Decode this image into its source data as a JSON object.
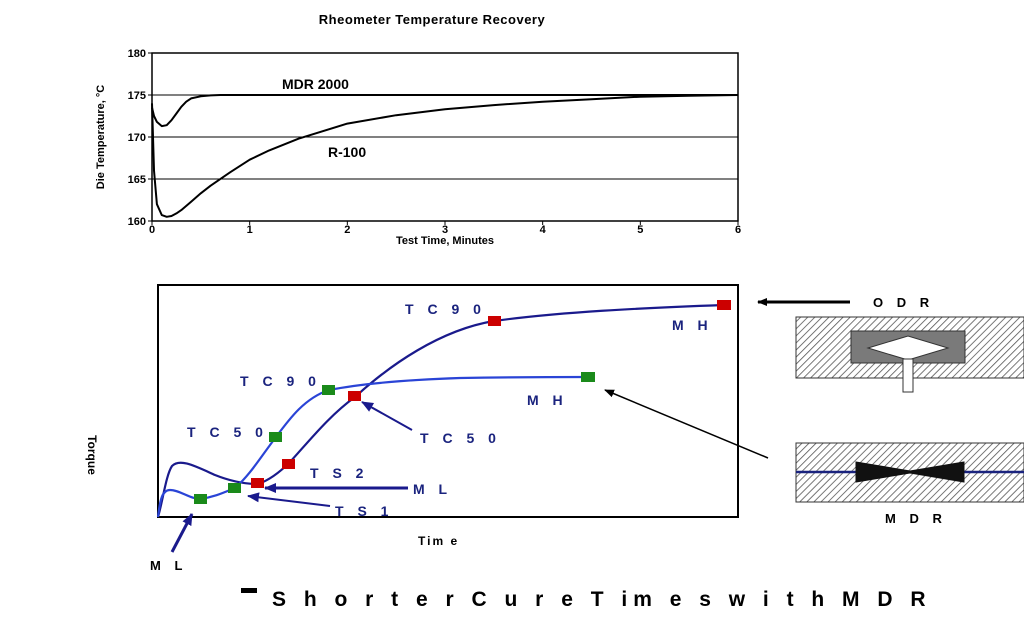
{
  "chart_data": [
    {
      "type": "line",
      "title": "Rheometer Temperature Recovery",
      "xlabel": "Test Time, Minutes",
      "ylabel": "Die Temperature, °C",
      "xlim": [
        0,
        6
      ],
      "ylim": [
        160,
        180
      ],
      "x_ticks": [
        "0",
        "1",
        "2",
        "3",
        "4",
        "5",
        "6"
      ],
      "y_ticks": [
        "160",
        "165",
        "170",
        "175",
        "180"
      ],
      "horizontal_gridlines": [
        165,
        170,
        175
      ],
      "series": [
        {
          "name": "MDR 2000",
          "x": [
            0,
            0.02,
            0.05,
            0.1,
            0.15,
            0.2,
            0.25,
            0.3,
            0.35,
            0.4,
            0.5,
            0.6,
            0.7,
            0.8,
            1.0,
            2.0,
            3.0,
            4.0,
            5.0,
            6.0
          ],
          "y": [
            173.5,
            172.5,
            171.8,
            171.3,
            171.4,
            172.0,
            172.8,
            173.6,
            174.2,
            174.6,
            174.85,
            174.95,
            175,
            175,
            175,
            175,
            175,
            175,
            175,
            175
          ]
        },
        {
          "name": "R-100",
          "x": [
            0,
            0.02,
            0.05,
            0.1,
            0.15,
            0.2,
            0.25,
            0.3,
            0.4,
            0.5,
            0.6,
            0.8,
            1.0,
            1.2,
            1.5,
            2.0,
            2.5,
            3.0,
            3.5,
            4.0,
            4.5,
            5.0,
            5.5,
            6.0
          ],
          "y": [
            174,
            166,
            162,
            160.7,
            160.5,
            160.6,
            160.9,
            161.3,
            162.3,
            163.3,
            164.2,
            165.8,
            167.3,
            168.4,
            169.8,
            171.6,
            172.6,
            173.3,
            173.8,
            174.2,
            174.5,
            174.8,
            174.9,
            175
          ]
        }
      ]
    },
    {
      "type": "line",
      "xlabel": "Tim e",
      "ylabel": "Torque",
      "series": [
        {
          "name": "ODR",
          "marker_labels": [
            "TS 1",
            "TS 2",
            "TC 50",
            "TC 90",
            "M H"
          ]
        },
        {
          "name": "MDR",
          "marker_labels": [
            "M L",
            "TC 50",
            "TC 90",
            "M H"
          ]
        }
      ],
      "annotations": [
        "M L",
        "M L",
        "TS 1",
        "TS 2",
        "TC 50",
        "TC 50",
        "TC 90",
        "TC 90",
        "M H",
        "M H"
      ]
    }
  ],
  "colors": {
    "odr_curve": "#1a1a8c",
    "mdr_curve": "#2a44d6",
    "odr_marker": "#cc0000",
    "mdr_marker": "#1a8a1a",
    "label_text": "#1a237e"
  },
  "labels": {
    "odr": "O D R",
    "mdr": "M D R",
    "bullet": "Shorter Cure Times with MDR",
    "bullet_display": "S h o r t e r C u r e T im e s w i t h M D R",
    "tc90_top": "T C 9 0",
    "tc90_mid": "T C 9 0",
    "tc50_left": "T C 5 0",
    "tc50_right": "T C 5 0",
    "mh_top": "M H",
    "mh_mid": "M H",
    "ts2": "T S 2",
    "ts1": "T S 1",
    "ml_right": "M L",
    "ml_bottom": "M L",
    "time": "Tim e",
    "torque": "Torque"
  }
}
